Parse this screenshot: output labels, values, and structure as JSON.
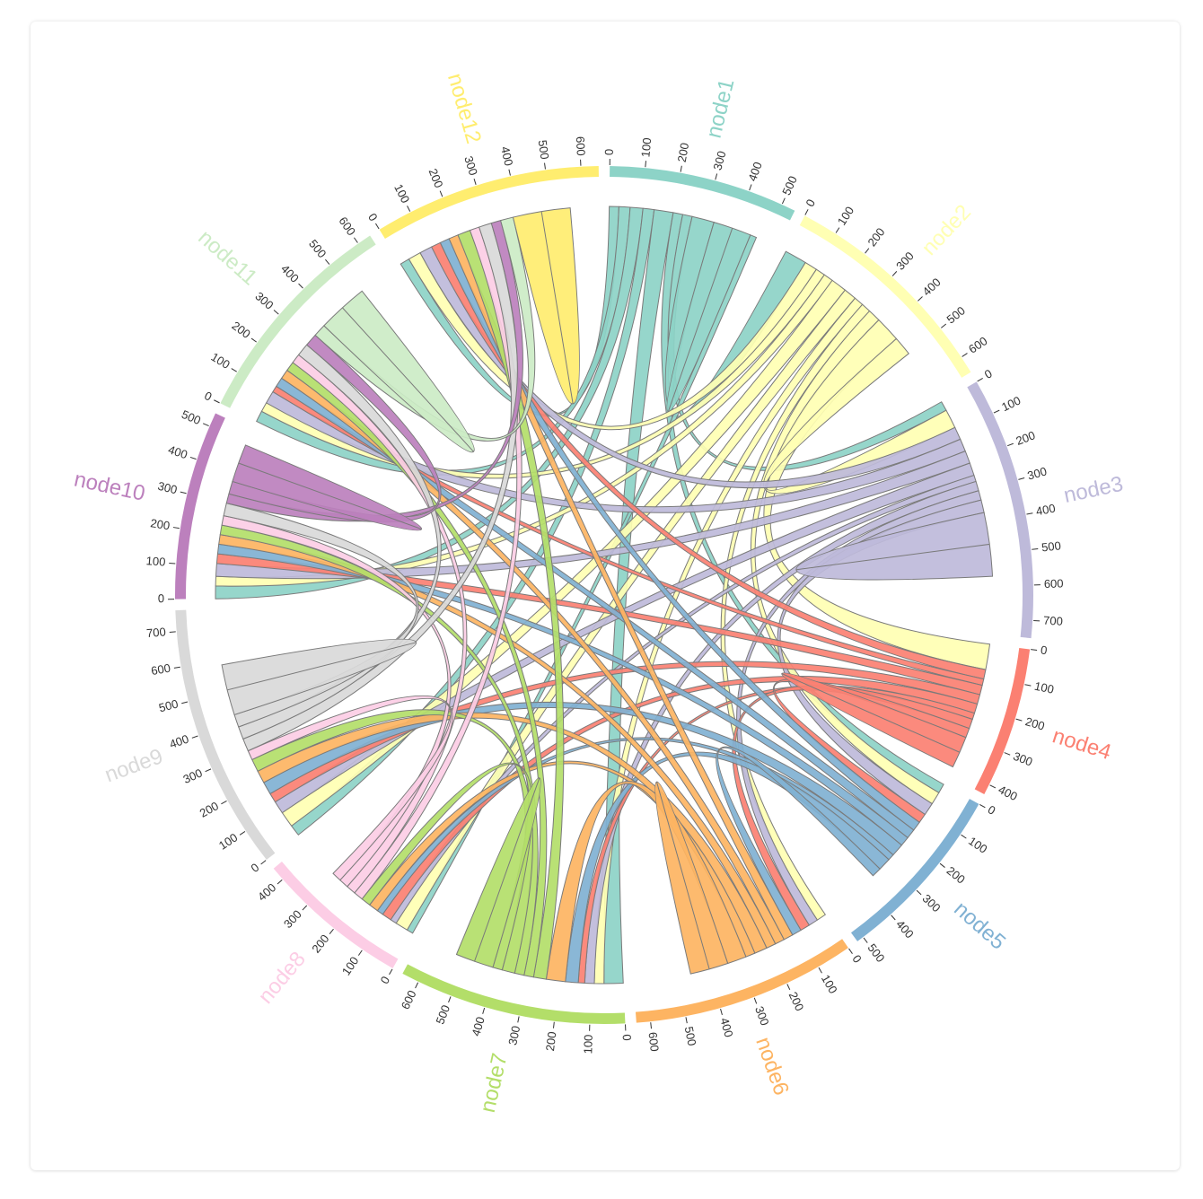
{
  "chart_data": {
    "type": "chord",
    "groups": [
      {
        "name": "node1",
        "total": 540,
        "color": "#8dd3c7"
      },
      {
        "name": "node2",
        "total": 650,
        "color": "#ffffb3"
      },
      {
        "name": "node3",
        "total": 750,
        "color": "#bebada"
      },
      {
        "name": "node4",
        "total": 430,
        "color": "#fb8072"
      },
      {
        "name": "node5",
        "total": 520,
        "color": "#80b1d3"
      },
      {
        "name": "node6",
        "total": 640,
        "color": "#fdb462"
      },
      {
        "name": "node7",
        "total": 650,
        "color": "#b3de69"
      },
      {
        "name": "node8",
        "total": 440,
        "color": "#fccde5"
      },
      {
        "name": "node9",
        "total": 760,
        "color": "#d9d9d9"
      },
      {
        "name": "node10",
        "total": 540,
        "color": "#bc80bd"
      },
      {
        "name": "node11",
        "total": 640,
        "color": "#ccebc5"
      },
      {
        "name": "node12",
        "total": 650,
        "color": "#ffed6f"
      }
    ],
    "tick_step": 100,
    "stroke_color": "#7a7a7a",
    "ribbons": [
      {
        "source": "node1",
        "target": "node12",
        "value": 30
      },
      {
        "source": "node1",
        "target": "node11",
        "value": 35
      },
      {
        "source": "node1",
        "target": "node10",
        "value": 40
      },
      {
        "source": "node1",
        "target": "node9",
        "value": 35
      },
      {
        "source": "node1",
        "target": "node7",
        "value": 60
      },
      {
        "source": "node1",
        "target": "node5",
        "value": 30
      },
      {
        "source": "node1",
        "target": "node3",
        "value": 30
      },
      {
        "source": "node1",
        "target": "node2",
        "value": 70
      },
      {
        "source": "node1",
        "target": "node1",
        "value": 60
      },
      {
        "source": "node1",
        "target": "node8",
        "value": 20
      },
      {
        "source": "node2",
        "target": "node12",
        "value": 40
      },
      {
        "source": "node2",
        "target": "node11",
        "value": 30
      },
      {
        "source": "node2",
        "target": "node10",
        "value": 30
      },
      {
        "source": "node2",
        "target": "node9",
        "value": 50
      },
      {
        "source": "node2",
        "target": "node8",
        "value": 40
      },
      {
        "source": "node2",
        "target": "node7",
        "value": 30
      },
      {
        "source": "node2",
        "target": "node6",
        "value": 30
      },
      {
        "source": "node2",
        "target": "node5",
        "value": 40
      },
      {
        "source": "node2",
        "target": "node4",
        "value": 80
      },
      {
        "source": "node2",
        "target": "node3",
        "value": 60
      },
      {
        "source": "node3",
        "target": "node12",
        "value": 40
      },
      {
        "source": "node3",
        "target": "node11",
        "value": 40
      },
      {
        "source": "node3",
        "target": "node10",
        "value": 40
      },
      {
        "source": "node3",
        "target": "node9",
        "value": 40
      },
      {
        "source": "node3",
        "target": "node8",
        "value": 20
      },
      {
        "source": "node3",
        "target": "node7",
        "value": 30
      },
      {
        "source": "node3",
        "target": "node6",
        "value": 30
      },
      {
        "source": "node3",
        "target": "node5",
        "value": 40
      },
      {
        "source": "node3",
        "target": "node3",
        "value": 100
      },
      {
        "source": "node4",
        "target": "node12",
        "value": 30
      },
      {
        "source": "node4",
        "target": "node11",
        "value": 20
      },
      {
        "source": "node4",
        "target": "node10",
        "value": 30
      },
      {
        "source": "node4",
        "target": "node9",
        "value": 30
      },
      {
        "source": "node4",
        "target": "node8",
        "value": 30
      },
      {
        "source": "node4",
        "target": "node7",
        "value": 20
      },
      {
        "source": "node4",
        "target": "node6",
        "value": 30
      },
      {
        "source": "node4",
        "target": "node5",
        "value": 30
      },
      {
        "source": "node4",
        "target": "node4",
        "value": 50
      },
      {
        "source": "node5",
        "target": "node12",
        "value": 30
      },
      {
        "source": "node5",
        "target": "node11",
        "value": 30
      },
      {
        "source": "node5",
        "target": "node10",
        "value": 30
      },
      {
        "source": "node5",
        "target": "node9",
        "value": 40
      },
      {
        "source": "node5",
        "target": "node8",
        "value": 20
      },
      {
        "source": "node5",
        "target": "node7",
        "value": 40
      },
      {
        "source": "node5",
        "target": "node6",
        "value": 30
      },
      {
        "source": "node6",
        "target": "node12",
        "value": 30
      },
      {
        "source": "node6",
        "target": "node11",
        "value": 30
      },
      {
        "source": "node6",
        "target": "node10",
        "value": 30
      },
      {
        "source": "node6",
        "target": "node9",
        "value": 40
      },
      {
        "source": "node6",
        "target": "node8",
        "value": 30
      },
      {
        "source": "node6",
        "target": "node7",
        "value": 60
      },
      {
        "source": "node6",
        "target": "node6",
        "value": 60
      },
      {
        "source": "node7",
        "target": "node12",
        "value": 40
      },
      {
        "source": "node7",
        "target": "node11",
        "value": 30
      },
      {
        "source": "node7",
        "target": "node10",
        "value": 30
      },
      {
        "source": "node7",
        "target": "node9",
        "value": 40
      },
      {
        "source": "node7",
        "target": "node8",
        "value": 30
      },
      {
        "source": "node7",
        "target": "node7",
        "value": 60
      },
      {
        "source": "node8",
        "target": "node12",
        "value": 30
      },
      {
        "source": "node8",
        "target": "node11",
        "value": 30
      },
      {
        "source": "node8",
        "target": "node10",
        "value": 30
      },
      {
        "source": "node8",
        "target": "node9",
        "value": 30
      },
      {
        "source": "node9",
        "target": "node12",
        "value": 40
      },
      {
        "source": "node9",
        "target": "node11",
        "value": 40
      },
      {
        "source": "node9",
        "target": "node10",
        "value": 40
      },
      {
        "source": "node9",
        "target": "node9",
        "value": 80
      },
      {
        "source": "node10",
        "target": "node12",
        "value": 30
      },
      {
        "source": "node10",
        "target": "node11",
        "value": 40
      },
      {
        "source": "node10",
        "target": "node10",
        "value": 60
      },
      {
        "source": "node11",
        "target": "node12",
        "value": 40
      },
      {
        "source": "node11",
        "target": "node11",
        "value": 80
      },
      {
        "source": "node12",
        "target": "node12",
        "value": 90
      }
    ]
  }
}
